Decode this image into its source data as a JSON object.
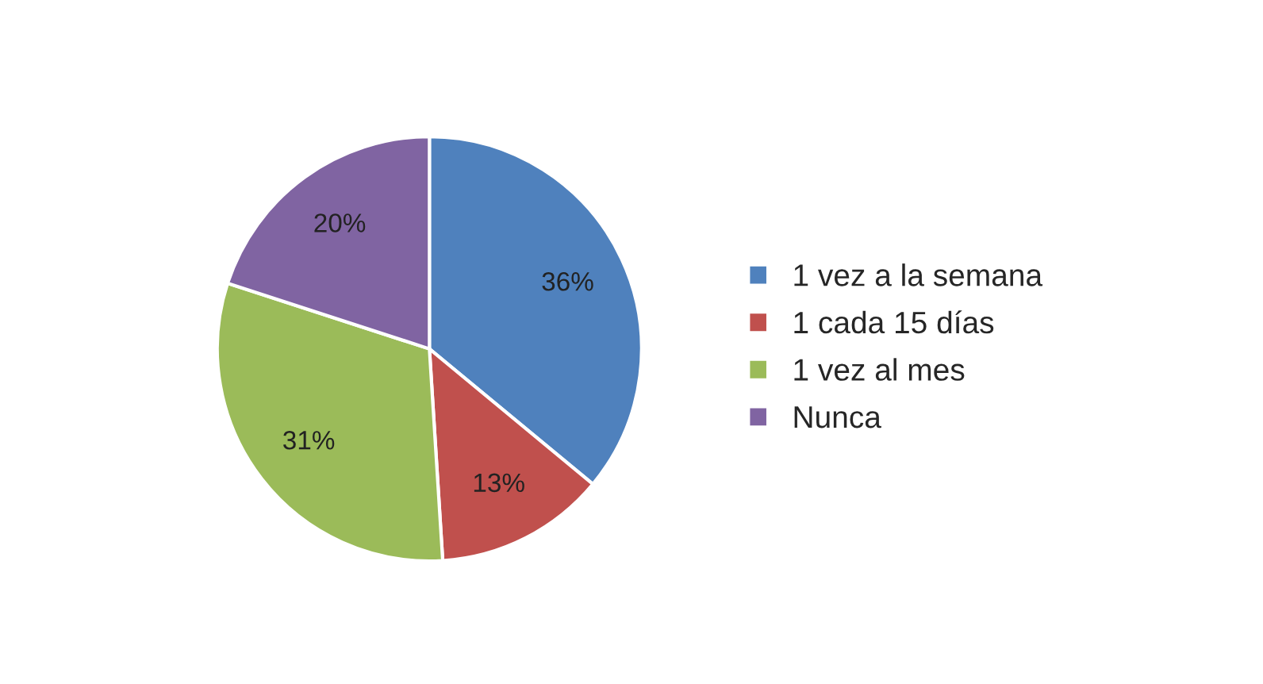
{
  "chart_data": {
    "type": "pie",
    "categories": [
      "1 vez a la semana",
      "1 cada 15 días",
      "1 vez al mes",
      "Nunca"
    ],
    "values": [
      36,
      13,
      31,
      20
    ],
    "colors": [
      "#4f81bd",
      "#c0504d",
      "#9bbb59",
      "#8064a2"
    ],
    "value_labels": [
      "36%",
      "13%",
      "31%",
      "20%"
    ],
    "legend": "right"
  }
}
